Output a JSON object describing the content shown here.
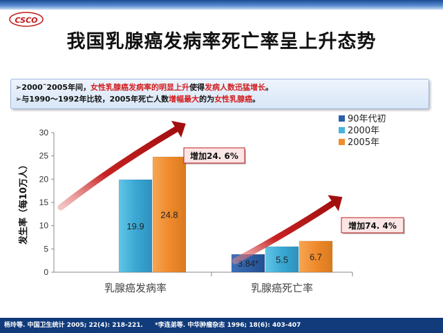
{
  "page": {
    "title": "我国乳腺癌发病率死亡率呈上升态势",
    "logo_text": "CSCO"
  },
  "info": {
    "line1": {
      "bullet": "➢",
      "parts": [
        {
          "text": "2000˜2005年间，",
          "highlight": false
        },
        {
          "text": "女性乳腺癌发病率的明显上升",
          "highlight": true
        },
        {
          "text": "使得",
          "highlight": false
        },
        {
          "text": "发病人数迅猛增长",
          "highlight": true
        },
        {
          "text": "。",
          "highlight": false
        }
      ]
    },
    "line2": {
      "bullet": "➢",
      "parts": [
        {
          "text": "与1990～1992年比较，2005年死亡人数",
          "highlight": false
        },
        {
          "text": "增幅最大",
          "highlight": true
        },
        {
          "text": "的为",
          "highlight": false
        },
        {
          "text": "女性乳腺癌",
          "highlight": true
        },
        {
          "text": "。",
          "highlight": false
        }
      ]
    }
  },
  "chart_data": {
    "type": "bar",
    "ylabel": "发生率（每10万人）",
    "ylim": [
      0,
      30
    ],
    "yticks": [
      0,
      5,
      10,
      15,
      20,
      25,
      30
    ],
    "categories": [
      "乳腺癌发病率",
      "乳腺癌死亡率"
    ],
    "series": [
      {
        "name": "90年代初",
        "values": [
          null,
          3.84
        ],
        "labels": [
          "",
          "3.84*"
        ],
        "color": "#2c5fa8"
      },
      {
        "name": "2000年",
        "values": [
          19.9,
          5.5
        ],
        "labels": [
          "19.9",
          "5.5"
        ],
        "color": "#4bb4d8"
      },
      {
        "name": "2005年",
        "values": [
          24.8,
          6.7
        ],
        "labels": [
          "24.8",
          "6.7"
        ],
        "color": "#f08c2a"
      }
    ],
    "annotations": [
      "增加24. 6%",
      "增加74. 4%"
    ],
    "legend_position": "top-right"
  },
  "footer": {
    "ref1": "杨玲等. 中国卫生统计 2005; 22(4): 218-221.",
    "ref2": "*李连弟等. 中华肿瘤杂志 1996; 18(6): 403-407"
  },
  "colors": {
    "accent_red": "#d21d1d",
    "footer_bg": "#113b7a",
    "arrow": "#b81414"
  }
}
